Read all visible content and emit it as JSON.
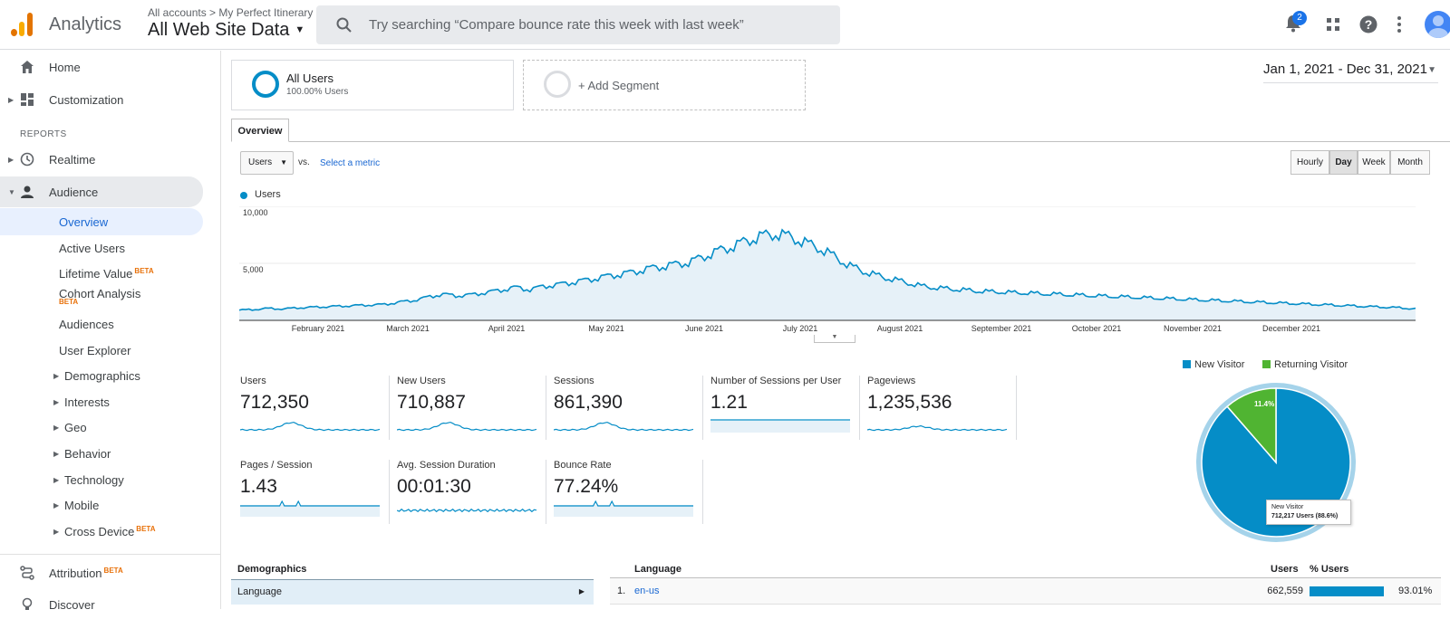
{
  "header": {
    "app_name": "Analytics",
    "breadcrumb": "All accounts > My Perfect Itinerary",
    "view_title": "All Web Site Data",
    "search_placeholder": "Try searching “Compare bounce rate this week with last week”",
    "notification_count": "2",
    "brand_colors": [
      "#f9ab00",
      "#e37400"
    ]
  },
  "sidebar": {
    "home": "Home",
    "customization": "Customization",
    "reports_label": "REPORTS",
    "realtime": "Realtime",
    "audience": "Audience",
    "audience_items": [
      "Overview",
      "Active Users",
      "Lifetime Value",
      "Cohort Analysis",
      "Audiences",
      "User Explorer"
    ],
    "audience_groups": [
      "Demographics",
      "Interests",
      "Geo",
      "Behavior",
      "Technology",
      "Mobile",
      "Cross Device"
    ],
    "attribution": "Attribution",
    "discover": "Discover",
    "beta": "BETA"
  },
  "segments": {
    "all_users": "All Users",
    "all_users_pct": "100.00% Users",
    "add_segment": "+ Add Segment"
  },
  "date_range": "Jan 1, 2021 - Dec 31, 2021",
  "tabs": {
    "overview": "Overview"
  },
  "controls": {
    "metric": "Users",
    "vs": "vs.",
    "select_metric": "Select a metric",
    "granularity": [
      "Hourly",
      "Day",
      "Week",
      "Month"
    ],
    "selected_granularity": "Day"
  },
  "chart_data": {
    "type": "area",
    "series": [
      {
        "name": "Users",
        "color": "#058dc7",
        "weekly_values": [
          900,
          950,
          1050,
          1000,
          1100,
          1150,
          1200,
          1250,
          1300,
          1350,
          1400,
          1600,
          1750,
          2050,
          2300,
          2150,
          2250,
          2450,
          2650,
          2900,
          2700,
          3000,
          3150,
          3350,
          3550,
          3800,
          4000,
          4200,
          4500,
          4700,
          4900,
          5100,
          5600,
          6100,
          6500,
          7000,
          7400,
          7600,
          7300,
          6800,
          6300,
          5600,
          4800,
          4300,
          3900,
          3600,
          3300,
          3000,
          2850,
          2750,
          2650,
          2550,
          2500,
          2450,
          2400,
          2350,
          2300,
          2250,
          2200,
          2150,
          2100,
          2050,
          2000,
          1950,
          1900,
          1850,
          1800,
          1750,
          1700,
          1650,
          1600,
          1550,
          1500,
          1450,
          1400,
          1350,
          1300,
          1250,
          1200,
          1150,
          1100,
          1000
        ]
      }
    ],
    "y_ticks": [
      "10,000",
      "5,000"
    ],
    "x_ticks": [
      "February 2021",
      "March 2021",
      "April 2021",
      "May 2021",
      "June 2021",
      "July 2021",
      "August 2021",
      "September 2021",
      "October 2021",
      "November 2021",
      "December 2021"
    ],
    "ylim": [
      0,
      10000
    ]
  },
  "metrics": [
    {
      "label": "Users",
      "value": "712,350"
    },
    {
      "label": "New Users",
      "value": "710,887"
    },
    {
      "label": "Sessions",
      "value": "861,390"
    },
    {
      "label": "Number of Sessions per User",
      "value": "1.21"
    },
    {
      "label": "Pageviews",
      "value": "1,235,536"
    },
    {
      "label": "Pages / Session",
      "value": "1.43"
    },
    {
      "label": "Avg. Session Duration",
      "value": "00:01:30"
    },
    {
      "label": "Bounce Rate",
      "value": "77.24%"
    }
  ],
  "pie": {
    "legend": [
      {
        "label": "New Visitor",
        "color": "#058dc7"
      },
      {
        "label": "Returning Visitor",
        "color": "#50b432"
      }
    ],
    "returning_pct_label": "11.4%",
    "tooltip_title": "New Visitor",
    "tooltip_value": "712,217 Users (88.6%)",
    "slices": [
      88.6,
      11.4
    ]
  },
  "demographics": {
    "header": "Demographics",
    "row": "Language"
  },
  "language_table": {
    "header_language": "Language",
    "header_users": "Users",
    "header_pct": "% Users",
    "rows": [
      {
        "rank": "1.",
        "language": "en-us",
        "users": "662,559",
        "pct": "93.01%",
        "pct_value": 93.01
      }
    ]
  }
}
